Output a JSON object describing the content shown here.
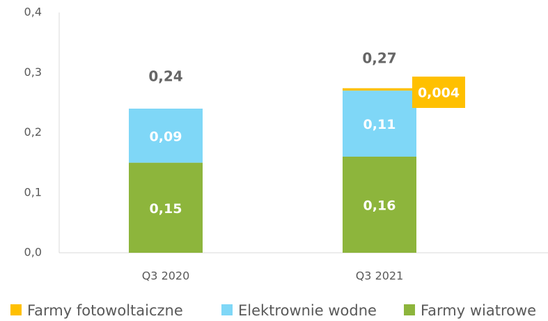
{
  "chart_data": {
    "type": "stacked-bar",
    "categories": [
      "Q3 2020",
      "Q3 2021"
    ],
    "series": [
      {
        "name": "Farmy fotowoltaiczne",
        "color": "#ffc000",
        "values": [
          null,
          0.004
        ],
        "value_labels": [
          null,
          "0,004"
        ]
      },
      {
        "name": "Elektrownie wodne",
        "color": "#7fd7f7",
        "values": [
          0.09,
          0.11
        ],
        "value_labels": [
          "0,09",
          "0,11"
        ]
      },
      {
        "name": "Farmy wiatrowe",
        "color": "#8db53c",
        "values": [
          0.15,
          0.16
        ],
        "value_labels": [
          "0,15",
          "0,16"
        ]
      }
    ],
    "totals": {
      "values": [
        0.24,
        0.27
      ],
      "value_labels": [
        "0,24",
        "0,27"
      ]
    },
    "ylim": [
      0,
      0.4
    ],
    "yticks": [
      {
        "value": 0,
        "label": "0,0"
      },
      {
        "value": 0.1,
        "label": "0,1"
      },
      {
        "value": 0.2,
        "label": "0,2"
      },
      {
        "value": 0.3,
        "label": "0,3"
      },
      {
        "value": 0.4,
        "label": "0,4"
      }
    ],
    "grid": false
  }
}
